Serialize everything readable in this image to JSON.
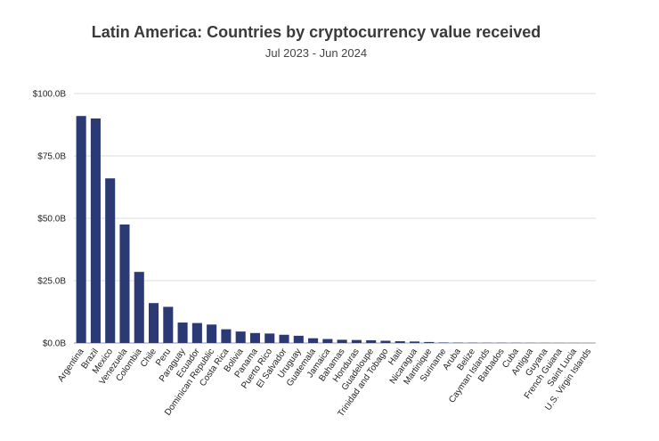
{
  "chart_data": {
    "type": "bar",
    "title": "Latin America: Countries by cryptocurrency value received",
    "subtitle": "Jul 2023 - Jun 2024",
    "xlabel": "",
    "ylabel": "",
    "ylim": [
      0,
      100
    ],
    "y_ticks": [
      "$0.0B",
      "$25.0B",
      "$50.0B",
      "$75.0B",
      "$100.0B"
    ],
    "y_tick_values": [
      0,
      25,
      50,
      75,
      100
    ],
    "grid": true,
    "legend": "none",
    "bar_color": "#2b3a74",
    "categories": [
      "Argentina",
      "Brazil",
      "Mexico",
      "Venezuela",
      "Colombia",
      "Chile",
      "Peru",
      "Paraguay",
      "Ecuador",
      "Dominican Republic",
      "Costa Rica",
      "Bolivia",
      "Panama",
      "Puerto Rico",
      "El Salvador",
      "Uruguay",
      "Guatemala",
      "Jamaica",
      "Bahamas",
      "Honduras",
      "Guadeloupe",
      "Trinidad and Tobago",
      "Haiti",
      "Nicaragua",
      "Martinique",
      "Suriname",
      "Aruba",
      "Belize",
      "Cayman Islands",
      "Barbados",
      "Cuba",
      "Antigua",
      "Guyana",
      "French Guiana",
      "Saint Lucia",
      "U.S. Virgin Islands"
    ],
    "values": [
      91,
      90,
      66,
      47.5,
      28.5,
      16,
      14.5,
      8.2,
      8,
      7.4,
      5.5,
      4.6,
      4,
      3.8,
      3.3,
      2.9,
      1.9,
      1.6,
      1.3,
      1.2,
      1.1,
      0.9,
      0.7,
      0.6,
      0.4,
      0.2,
      0.15,
      0.12,
      0.1,
      0.1,
      0.08,
      0.06,
      0.05,
      0.04,
      0.03,
      0.02
    ]
  }
}
